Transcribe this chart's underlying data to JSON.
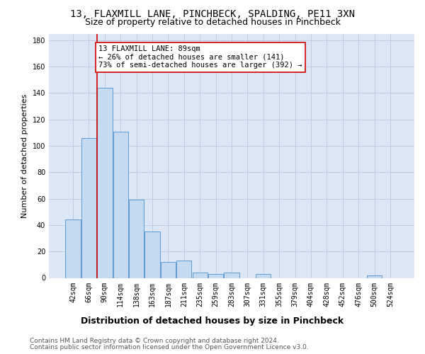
{
  "title": "13, FLAXMILL LANE, PINCHBECK, SPALDING, PE11 3XN",
  "subtitle": "Size of property relative to detached houses in Pinchbeck",
  "xlabel": "Distribution of detached houses by size in Pinchbeck",
  "ylabel": "Number of detached properties",
  "bar_color": "#c5d9f0",
  "bar_edgecolor": "#5b9bd5",
  "background_color": "#ffffff",
  "plot_bg_color": "#dce6f5",
  "grid_color": "#b8c8dc",
  "categories": [
    "42sqm",
    "66sqm",
    "90sqm",
    "114sqm",
    "138sqm",
    "163sqm",
    "187sqm",
    "211sqm",
    "235sqm",
    "259sqm",
    "283sqm",
    "307sqm",
    "331sqm",
    "355sqm",
    "379sqm",
    "404sqm",
    "428sqm",
    "452sqm",
    "476sqm",
    "500sqm",
    "524sqm"
  ],
  "values": [
    44,
    106,
    144,
    111,
    59,
    35,
    12,
    13,
    4,
    3,
    4,
    0,
    3,
    0,
    0,
    0,
    0,
    0,
    0,
    2,
    0
  ],
  "ylim": [
    0,
    185
  ],
  "yticks": [
    0,
    20,
    40,
    60,
    80,
    100,
    120,
    140,
    160,
    180
  ],
  "annotation_title": "13 FLAXMILL LANE: 89sqm",
  "annotation_line1": "← 26% of detached houses are smaller (141)",
  "annotation_line2": "73% of semi-detached houses are larger (392) →",
  "annotation_box_color": "#ffffff",
  "annotation_box_edgecolor": "#cc0000",
  "vline_color": "#cc0000",
  "footer_line1": "Contains HM Land Registry data © Crown copyright and database right 2024.",
  "footer_line2": "Contains public sector information licensed under the Open Government Licence v3.0.",
  "title_fontsize": 10,
  "subtitle_fontsize": 9,
  "xlabel_fontsize": 9,
  "ylabel_fontsize": 8,
  "tick_fontsize": 7,
  "annotation_fontsize": 7.5,
  "footer_fontsize": 6.5
}
